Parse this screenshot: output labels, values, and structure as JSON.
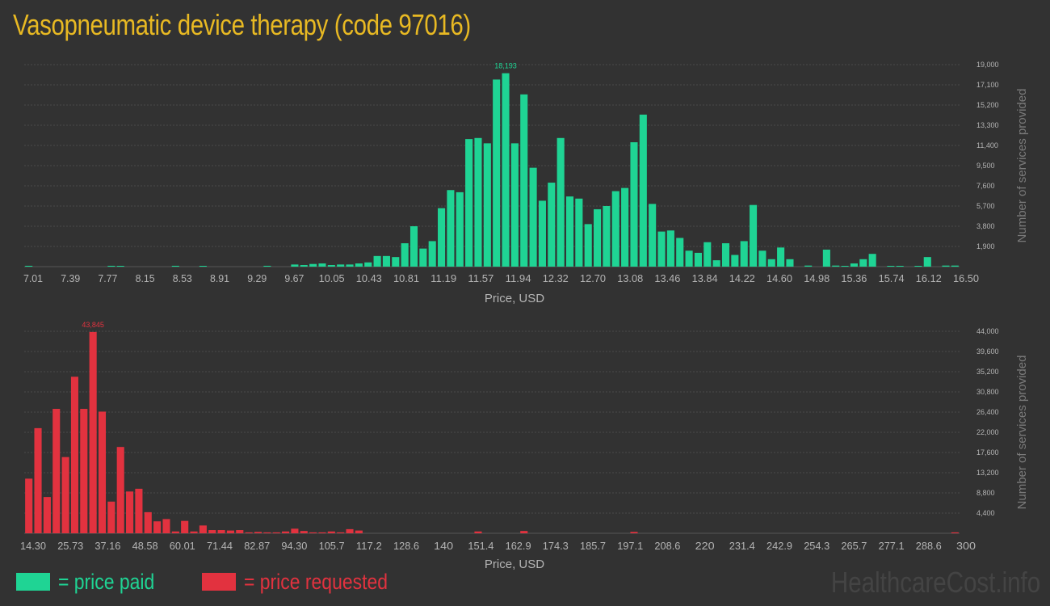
{
  "title": "Vasopneumatic device therapy (code 97016)",
  "colors": {
    "background": "#323232",
    "title": "#e8b923",
    "paid": "#1fd494",
    "requested": "#e2323f",
    "axis_text": "#b4b4b4",
    "grid": "#4a4a4a"
  },
  "legend": {
    "paid_label": "= price paid",
    "requested_label": "= price requested"
  },
  "watermark": "HealthcareCost.info",
  "chart_data": [
    {
      "type": "bar",
      "name": "price paid",
      "xlabel": "Price, USD",
      "ylabel": "Number of services provided",
      "ylim": [
        0,
        19000
      ],
      "grid": true,
      "x_ticks": [
        "7.01",
        "7.39",
        "7.77",
        "8.15",
        "8.53",
        "8.91",
        "9.29",
        "9.67",
        "10.05",
        "10.43",
        "10.81",
        "11.19",
        "11.57",
        "11.94",
        "12.32",
        "12.70",
        "13.08",
        "13.46",
        "13.84",
        "14.22",
        "14.60",
        "14.98",
        "15.36",
        "15.74",
        "16.12",
        "16.50"
      ],
      "y_ticks": [
        "1,900",
        "3,800",
        "5,700",
        "7,600",
        "9,500",
        "11,400",
        "13,300",
        "15,200",
        "17,100",
        "19,000"
      ],
      "peak_label": "18,193",
      "values": [
        80,
        0,
        0,
        0,
        0,
        0,
        0,
        0,
        0,
        80,
        60,
        0,
        0,
        0,
        0,
        0,
        80,
        0,
        0,
        60,
        0,
        0,
        0,
        0,
        0,
        0,
        80,
        0,
        0,
        200,
        150,
        250,
        300,
        150,
        200,
        200,
        300,
        400,
        1000,
        1000,
        900,
        2200,
        3800,
        1700,
        2400,
        5500,
        7200,
        7000,
        12000,
        12100,
        11600,
        17600,
        18193,
        11600,
        16200,
        9300,
        6200,
        7900,
        12100,
        6600,
        6400,
        4000,
        5400,
        5700,
        7100,
        7400,
        11700,
        14300,
        5900,
        3300,
        3400,
        2700,
        1500,
        1300,
        2300,
        600,
        2200,
        1100,
        2400,
        5800,
        1500,
        700,
        1800,
        700,
        0,
        100,
        0,
        1600,
        100,
        50,
        300,
        700,
        1200,
        0,
        50,
        50,
        0,
        50,
        900,
        0,
        100,
        100
      ]
    },
    {
      "type": "bar",
      "name": "price requested",
      "xlabel": "Price, USD",
      "ylabel": "Number of services provided",
      "ylim": [
        0,
        44000
      ],
      "grid": true,
      "x_ticks": [
        "14.30",
        "25.73",
        "37.16",
        "48.58",
        "60.01",
        "71.44",
        "82.87",
        "94.30",
        "105.7",
        "117.2",
        "128.6",
        "140",
        "151.4",
        "162.9",
        "174.3",
        "185.7",
        "197.1",
        "208.6",
        "220",
        "231.4",
        "242.9",
        "254.3",
        "265.7",
        "277.1",
        "288.6",
        "300"
      ],
      "y_ticks": [
        "4,400",
        "8,800",
        "13,200",
        "17,600",
        "22,000",
        "26,400",
        "30,800",
        "35,200",
        "39,600",
        "44,000"
      ],
      "peak_label": "43,845",
      "values": [
        11900,
        22900,
        7900,
        27100,
        16600,
        34100,
        27100,
        43845,
        26500,
        6900,
        18800,
        9100,
        9700,
        4600,
        2600,
        3100,
        400,
        2700,
        400,
        1700,
        700,
        700,
        600,
        700,
        200,
        300,
        200,
        200,
        400,
        1000,
        500,
        200,
        200,
        400,
        200,
        900,
        600,
        0,
        0,
        0,
        0,
        0,
        0,
        0,
        0,
        0,
        0,
        0,
        0,
        400,
        0,
        0,
        0,
        0,
        500,
        0,
        0,
        0,
        0,
        0,
        0,
        0,
        0,
        0,
        0,
        0,
        300,
        0,
        0,
        0,
        0,
        0,
        0,
        0,
        0,
        0,
        0,
        0,
        0,
        0,
        0,
        0,
        0,
        0,
        0,
        0,
        0,
        0,
        0,
        0,
        0,
        0,
        0,
        0,
        0,
        0,
        0,
        0,
        0,
        0,
        0,
        200
      ]
    }
  ]
}
